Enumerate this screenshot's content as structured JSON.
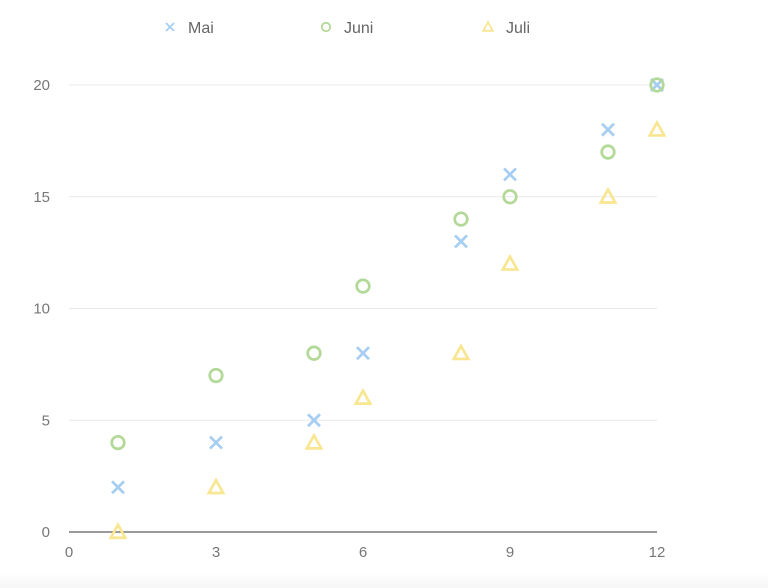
{
  "chart_data": {
    "type": "scatter",
    "title": "",
    "xlabel": "",
    "ylabel": "",
    "xlim": [
      0,
      12
    ],
    "ylim": [
      0,
      20
    ],
    "xticks": [
      0,
      3,
      6,
      9,
      12
    ],
    "yticks": [
      0,
      5,
      10,
      15,
      20
    ],
    "grid": "horizontal",
    "legend": "top",
    "series": [
      {
        "name": "Mai",
        "marker": "cross",
        "color": "#a6cdf2",
        "points": [
          [
            1,
            2
          ],
          [
            3,
            4
          ],
          [
            5,
            5
          ],
          [
            6,
            8
          ],
          [
            8,
            13
          ],
          [
            9,
            16
          ],
          [
            11,
            18
          ],
          [
            12,
            20
          ]
        ]
      },
      {
        "name": "Juni",
        "marker": "circle",
        "color": "#b3d998",
        "points": [
          [
            1,
            4
          ],
          [
            3,
            7
          ],
          [
            5,
            8
          ],
          [
            6,
            11
          ],
          [
            8,
            14
          ],
          [
            9,
            15
          ],
          [
            11,
            17
          ],
          [
            12,
            20
          ]
        ]
      },
      {
        "name": "Juli",
        "marker": "triangle",
        "color": "#f9e690",
        "points": [
          [
            1,
            0
          ],
          [
            3,
            2
          ],
          [
            5,
            4
          ],
          [
            6,
            6
          ],
          [
            8,
            8
          ],
          [
            9,
            12
          ],
          [
            11,
            15
          ],
          [
            12,
            18
          ]
        ]
      }
    ]
  }
}
